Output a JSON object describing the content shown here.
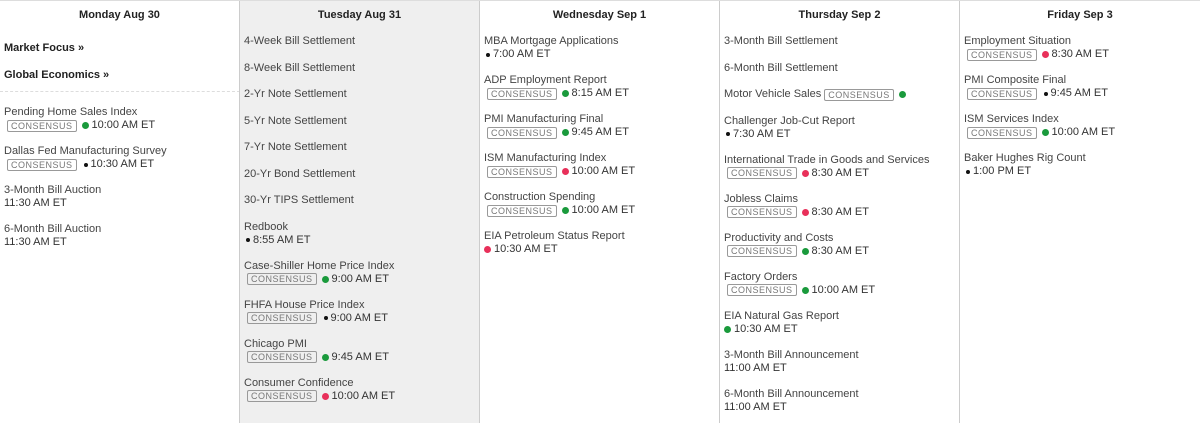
{
  "consensus_label": "CONSENSUS",
  "colors": {
    "green": "#1a9a3c",
    "red": "#e8305a",
    "black": "#111111"
  },
  "days": [
    {
      "title": "Monday Aug 30",
      "highlight": false,
      "links": [
        "Market Focus »",
        "Global Economics »"
      ],
      "events": [
        {
          "name": "Pending Home Sales Index",
          "consensus": true,
          "dot": "green",
          "time": "10:00 AM ET"
        },
        {
          "name": "Dallas Fed Manufacturing Survey",
          "consensus": true,
          "dot": "black",
          "time": "10:30 AM ET"
        },
        {
          "name": "3-Month Bill Auction",
          "consensus": false,
          "dot": null,
          "time": "11:30 AM ET"
        },
        {
          "name": "6-Month Bill Auction",
          "consensus": false,
          "dot": null,
          "time": "11:30 AM ET"
        }
      ]
    },
    {
      "title": "Tuesday Aug 31",
      "highlight": true,
      "events": [
        {
          "name": "4-Week Bill Settlement"
        },
        {
          "name": "8-Week Bill Settlement"
        },
        {
          "name": "2-Yr Note Settlement"
        },
        {
          "name": "5-Yr Note Settlement"
        },
        {
          "name": "7-Yr Note Settlement"
        },
        {
          "name": "20-Yr Bond Settlement"
        },
        {
          "name": "30-Yr TIPS Settlement"
        },
        {
          "name": "Redbook",
          "consensus": false,
          "dot": "black",
          "time": "8:55 AM ET"
        },
        {
          "name": "Case-Shiller Home Price Index",
          "consensus": true,
          "dot": "green",
          "time": "9:00 AM ET"
        },
        {
          "name": "FHFA House Price Index",
          "consensus": true,
          "dot": "black",
          "time": "9:00 AM ET"
        },
        {
          "name": "Chicago PMI",
          "consensus": true,
          "dot": "green",
          "time": "9:45 AM ET"
        },
        {
          "name": "Consumer Confidence",
          "consensus": true,
          "dot": "red",
          "time": "10:00 AM ET"
        }
      ]
    },
    {
      "title": "Wednesday Sep 1",
      "highlight": false,
      "events": [
        {
          "name": "MBA Mortgage Applications",
          "consensus": false,
          "dot": "black",
          "time": "7:00 AM ET"
        },
        {
          "name": "ADP Employment Report",
          "consensus": true,
          "dot": "green",
          "time": "8:15 AM ET"
        },
        {
          "name": "PMI Manufacturing Final",
          "consensus": true,
          "dot": "green",
          "time": "9:45 AM ET"
        },
        {
          "name": "ISM Manufacturing Index",
          "consensus": true,
          "dot": "red",
          "time": "10:00 AM ET"
        },
        {
          "name": "Construction Spending",
          "consensus": true,
          "dot": "green",
          "time": "10:00 AM ET"
        },
        {
          "name": "EIA Petroleum Status Report",
          "consensus": false,
          "dot": "red",
          "time": "10:30 AM ET"
        }
      ]
    },
    {
      "title": "Thursday Sep 2",
      "highlight": false,
      "events": [
        {
          "name": "3-Month Bill Settlement"
        },
        {
          "name": "6-Month Bill Settlement"
        },
        {
          "name": "Motor Vehicle Sales",
          "consensus": true,
          "dot": "green",
          "inline": true
        },
        {
          "name": "Challenger Job-Cut Report",
          "consensus": false,
          "dot": "black",
          "time": "7:30 AM ET"
        },
        {
          "name": "International Trade in Goods and Services",
          "consensus": true,
          "dot": "red",
          "time": "8:30 AM ET"
        },
        {
          "name": "Jobless Claims",
          "consensus": true,
          "dot": "red",
          "time": "8:30 AM ET"
        },
        {
          "name": "Productivity and Costs",
          "consensus": true,
          "dot": "green",
          "time": "8:30 AM ET"
        },
        {
          "name": "Factory Orders",
          "consensus": true,
          "dot": "green",
          "time": "10:00 AM ET"
        },
        {
          "name": "EIA Natural Gas Report",
          "consensus": false,
          "dot": "green",
          "time": "10:30 AM ET"
        },
        {
          "name": "3-Month Bill Announcement",
          "consensus": false,
          "dot": null,
          "time": "11:00 AM ET"
        },
        {
          "name": "6-Month Bill Announcement",
          "consensus": false,
          "dot": null,
          "time": "11:00 AM ET"
        }
      ]
    },
    {
      "title": "Friday Sep 3",
      "highlight": false,
      "events": [
        {
          "name": "Employment Situation",
          "consensus": true,
          "dot": "red",
          "time": "8:30 AM ET"
        },
        {
          "name": "PMI Composite Final",
          "consensus": true,
          "dot": "black",
          "time": "9:45 AM ET"
        },
        {
          "name": "ISM Services Index",
          "consensus": true,
          "dot": "green",
          "time": "10:00 AM ET"
        },
        {
          "name": "Baker Hughes Rig Count",
          "consensus": false,
          "dot": "black",
          "time": "1:00 PM ET"
        }
      ]
    }
  ]
}
